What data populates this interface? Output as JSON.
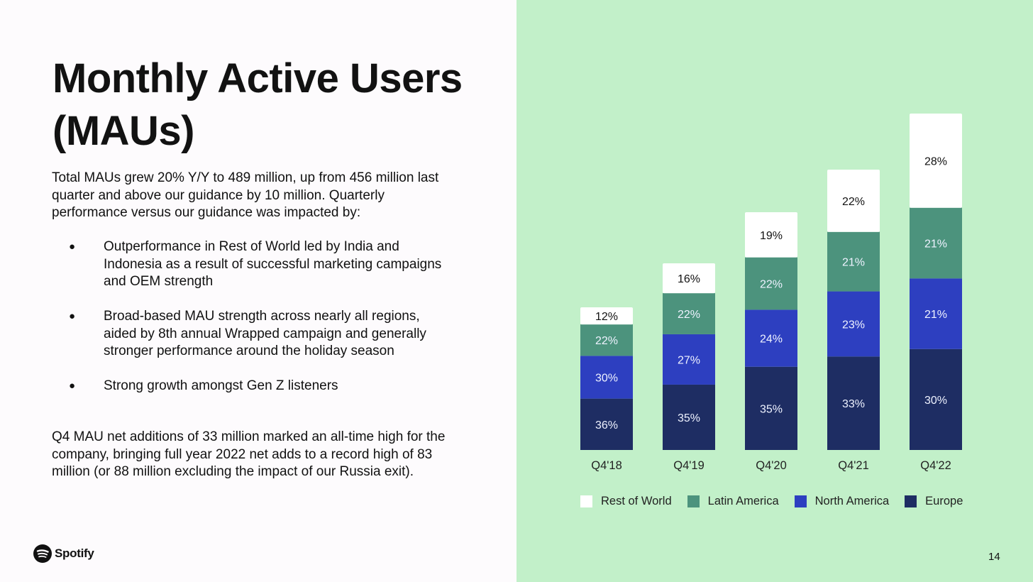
{
  "slide": {
    "title": "Monthly Active Users (MAUs)",
    "intro": "Total MAUs grew 20% Y/Y to 489 million, up from 456 million last quarter and above our guidance by 10 million. Quarterly performance versus our guidance was impacted by:",
    "bullets": [
      "Outperformance in Rest of World led by India and Indonesia as a result of successful marketing campaigns and OEM strength",
      "Broad-based MAU strength across nearly all regions, aided by 8th annual Wrapped campaign and generally stronger performance around the holiday season",
      "Strong growth amongst Gen Z listeners"
    ],
    "closing": "Q4 MAU net additions of 33 million marked an all-time high for the company, bringing full year 2022 net adds to a record high of 83 million (or 88 million excluding the impact of our Russia exit).",
    "logo_text": "Spotify",
    "logo_icon": "spotify-logo-icon",
    "page_number": "14"
  },
  "chart_data": {
    "type": "bar",
    "stacked": true,
    "categories": [
      "Q4'18",
      "Q4'19",
      "Q4'20",
      "Q4'21",
      "Q4'22"
    ],
    "series": [
      {
        "name": "Europe",
        "color": "#1e2d63",
        "values": [
          36,
          35,
          35,
          33,
          30
        ]
      },
      {
        "name": "North America",
        "color": "#2d3fc0",
        "values": [
          30,
          27,
          24,
          23,
          21
        ]
      },
      {
        "name": "Latin America",
        "color": "#4c937d",
        "values": [
          22,
          22,
          22,
          21,
          21
        ]
      },
      {
        "name": "Rest of World",
        "color": "#ffffff",
        "values": [
          12,
          16,
          19,
          22,
          28
        ]
      }
    ],
    "legend_order": [
      "Rest of World",
      "Latin America",
      "North America",
      "Europe"
    ],
    "legend_position": "bottom",
    "grid": false,
    "value_suffix": "%"
  }
}
